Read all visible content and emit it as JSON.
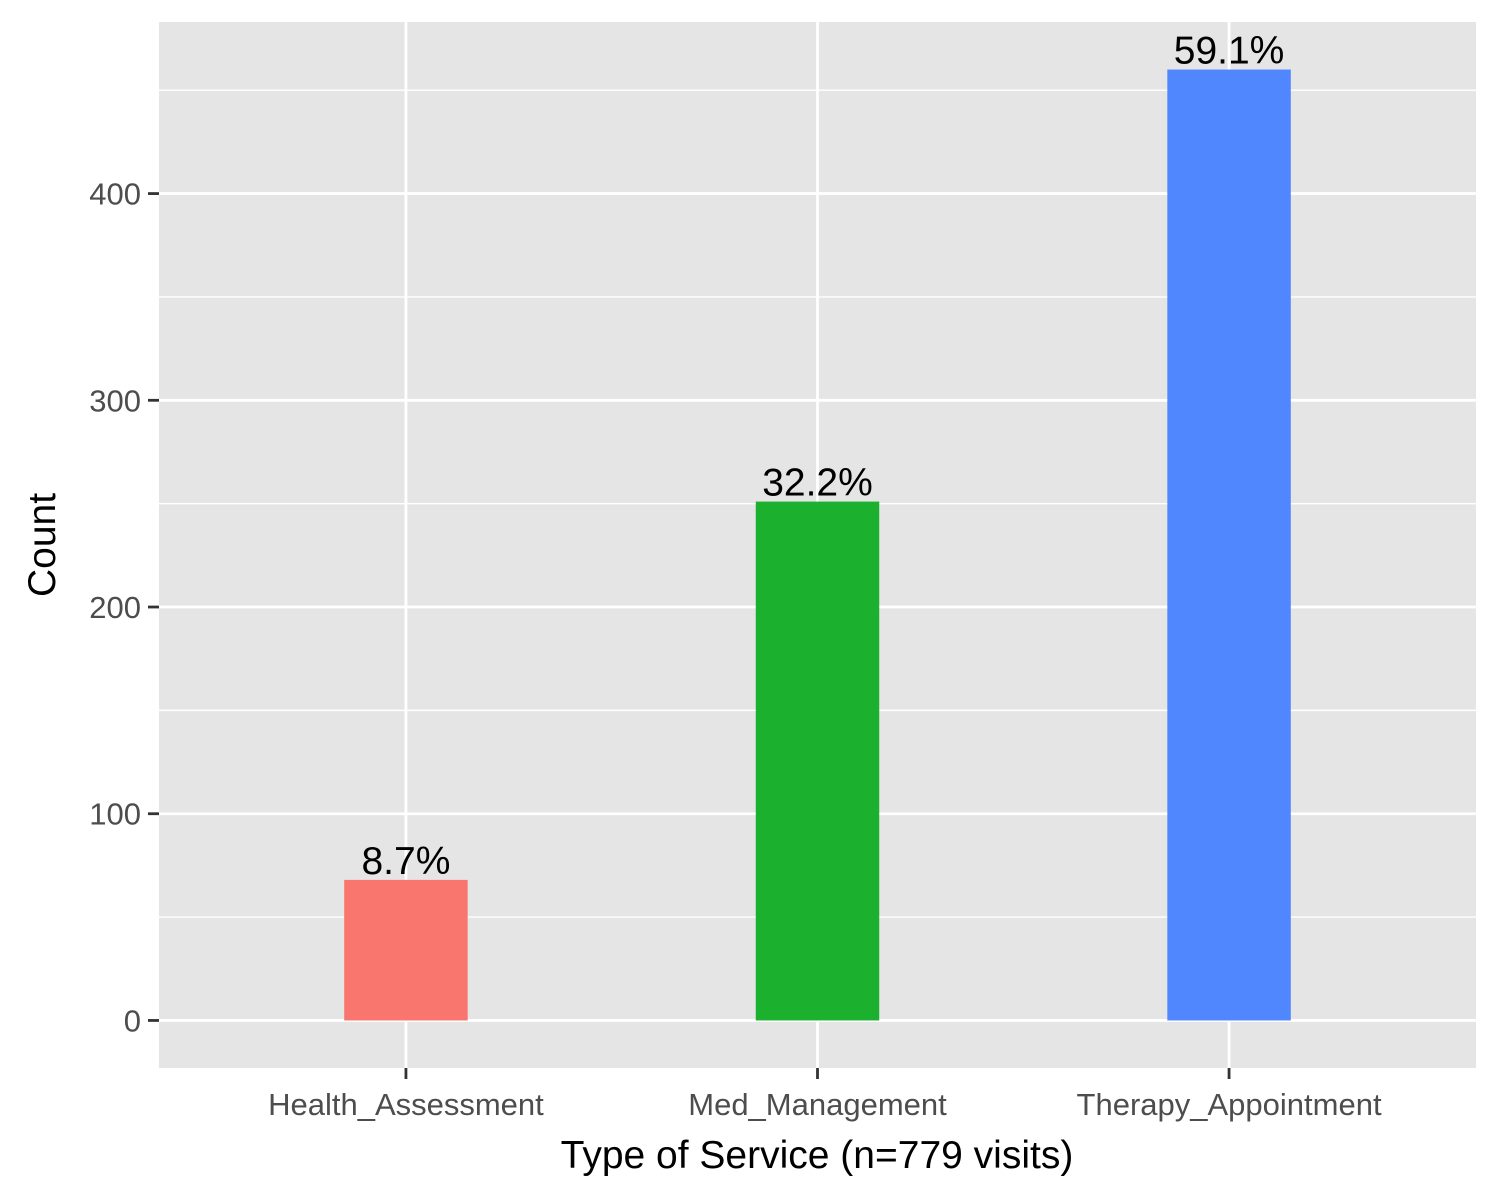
{
  "chart_data": {
    "type": "bar",
    "title": "",
    "xlabel": "Type of Service (n=779 visits)",
    "ylabel": "Count",
    "categories": [
      "Health_Assessment",
      "Med_Management",
      "Therapy_Appointment"
    ],
    "values": [
      68,
      251,
      460
    ],
    "data_labels": [
      "8.7%",
      "32.2%",
      "59.1%"
    ],
    "colors": [
      "#F8766D",
      "#1BB12E",
      "#5087FF"
    ],
    "ylim": [
      -23.0,
      483.0
    ],
    "y_ticks": [
      0,
      100,
      200,
      300,
      400
    ],
    "y_tick_labels": [
      "0",
      "100",
      "200",
      "300",
      "400"
    ],
    "grid": true,
    "legend": "none",
    "panel_background": "#E5E5E5",
    "grid_color": "#FFFFFF"
  }
}
